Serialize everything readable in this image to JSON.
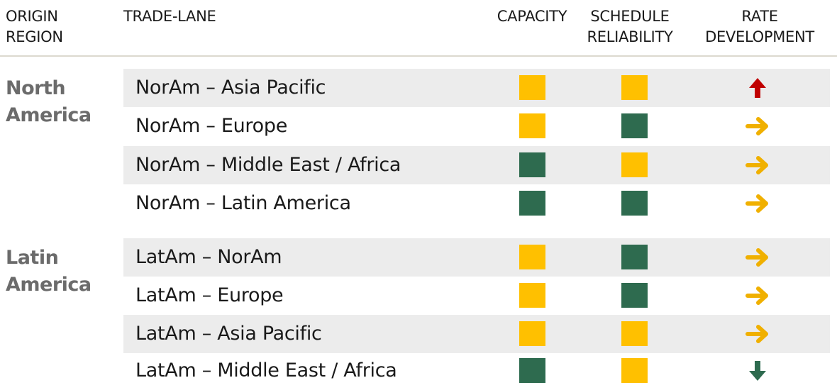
{
  "header": {
    "origin_region": "ORIGIN REGION",
    "trade_lane": "TRADE-LANE",
    "capacity": "CAPACITY",
    "schedule_reliability": "SCHEDULE RELIABILITY",
    "rate_development": "RATE DEVELOPMENT"
  },
  "colors": {
    "yellow": "#ffc000",
    "green": "#2e6b4f",
    "red": "#c00000",
    "arrow_yellow": "#f0b000",
    "row_shade": "#ececec",
    "region_text": "#6b6b6b"
  },
  "regions": [
    {
      "name": "North America",
      "lanes": [
        {
          "name": "NorAm – Asia Pacific",
          "capacity": "yellow",
          "schedule": "yellow",
          "rate": "up"
        },
        {
          "name": "NorAm – Europe",
          "capacity": "yellow",
          "schedule": "green",
          "rate": "right"
        },
        {
          "name": "NorAm – Middle East / Africa",
          "capacity": "green",
          "schedule": "yellow",
          "rate": "right"
        },
        {
          "name": "NorAm – Latin America",
          "capacity": "green",
          "schedule": "green",
          "rate": "right"
        }
      ]
    },
    {
      "name": "Latin America",
      "lanes": [
        {
          "name": "LatAm – NorAm",
          "capacity": "yellow",
          "schedule": "green",
          "rate": "right"
        },
        {
          "name": "LatAm – Europe",
          "capacity": "yellow",
          "schedule": "green",
          "rate": "right"
        },
        {
          "name": "LatAm – Asia Pacific",
          "capacity": "yellow",
          "schedule": "yellow",
          "rate": "right"
        },
        {
          "name": "LatAm – Middle East / Africa",
          "capacity": "green",
          "schedule": "yellow",
          "rate": "down"
        }
      ]
    }
  ]
}
